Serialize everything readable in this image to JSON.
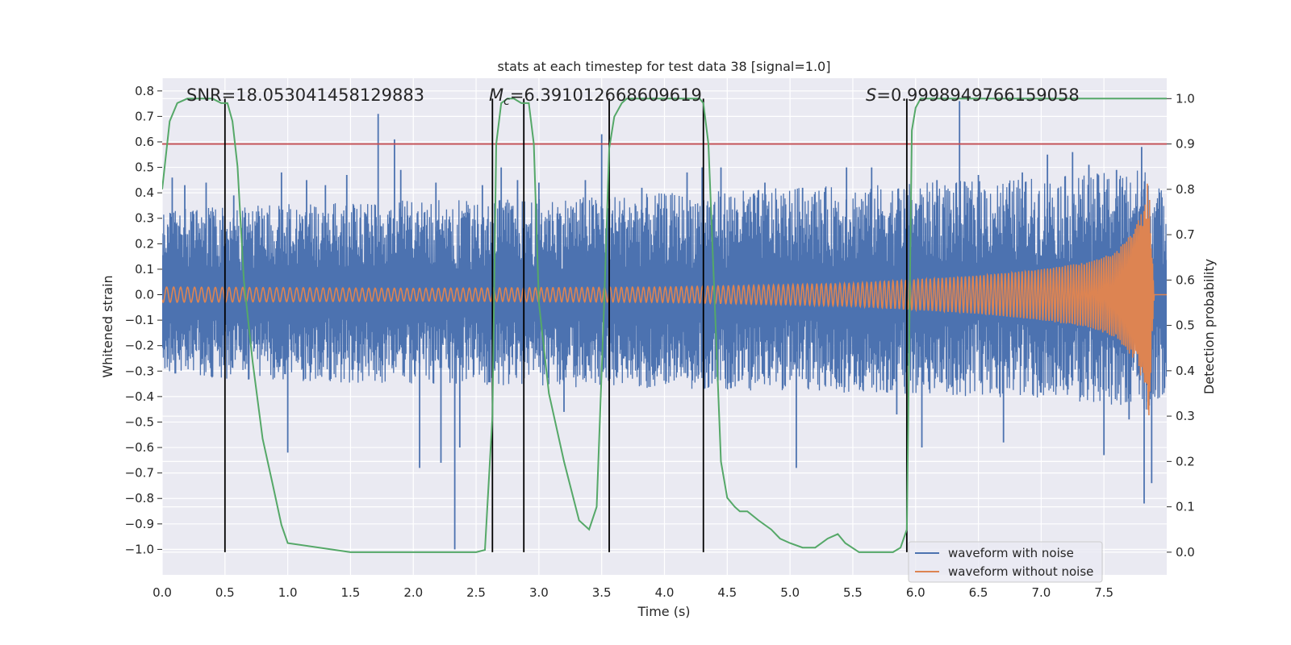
{
  "chart_data": {
    "type": "line",
    "title": "stats at each timestep for test data 38 [signal=1.0]",
    "xlabel": "Time (s)",
    "ylabel_left": "Whitened strain",
    "ylabel_right": "Detection probability",
    "xlim": [
      0.0,
      8.0
    ],
    "ylim_left": [
      -1.1,
      0.85
    ],
    "ylim_right": [
      -0.05,
      1.045
    ],
    "x_ticks": [
      "0.0",
      "0.5",
      "1.0",
      "1.5",
      "2.0",
      "2.5",
      "3.0",
      "3.5",
      "4.0",
      "4.5",
      "5.0",
      "5.5",
      "6.0",
      "6.5",
      "7.0",
      "7.5"
    ],
    "y_left_ticks": [
      "0.8",
      "0.7",
      "0.6",
      "0.5",
      "0.4",
      "0.3",
      "0.2",
      "0.1",
      "0.0",
      "−0.1",
      "−0.2",
      "−0.3",
      "−0.4",
      "−0.5",
      "−0.6",
      "−0.7",
      "−0.8",
      "−0.9",
      "−1.0"
    ],
    "y_right_ticks": [
      "1.0",
      "0.9",
      "0.8",
      "0.7",
      "0.6",
      "0.5",
      "0.4",
      "0.3",
      "0.2",
      "0.1",
      "0.0"
    ],
    "grid": true,
    "legend_position": "lower-right",
    "annotations": {
      "snr": "SNR=18.053041458129883",
      "mc": "=6.391012668609619",
      "mc_symbol": "M",
      "mc_sub": "c",
      "s_label": "=0.9998949766159058",
      "s_symbol": "S"
    },
    "threshold": {
      "axis": "right",
      "value": 0.9,
      "color": "#c44e52"
    },
    "vertical_lines_x": [
      0.5,
      2.63,
      2.88,
      3.56,
      4.31,
      5.93
    ],
    "series": [
      {
        "name": "waveform with noise",
        "color": "#4c72b0",
        "axis": "left",
        "envelope_upper": [
          [
            0.0,
            0.33
          ],
          [
            0.5,
            0.35
          ],
          [
            1.0,
            0.36
          ],
          [
            2.0,
            0.37
          ],
          [
            3.0,
            0.38
          ],
          [
            4.0,
            0.4
          ],
          [
            5.0,
            0.42
          ],
          [
            6.0,
            0.44
          ],
          [
            7.0,
            0.46
          ],
          [
            7.5,
            0.48
          ],
          [
            7.85,
            0.5
          ],
          [
            7.95,
            0.42
          ],
          [
            8.0,
            0.4
          ]
        ],
        "envelope_lower": [
          [
            0.0,
            -0.31
          ],
          [
            0.5,
            -0.33
          ],
          [
            1.0,
            -0.34
          ],
          [
            2.0,
            -0.35
          ],
          [
            3.0,
            -0.36
          ],
          [
            4.0,
            -0.37
          ],
          [
            5.0,
            -0.38
          ],
          [
            6.0,
            -0.39
          ],
          [
            7.0,
            -0.41
          ],
          [
            7.5,
            -0.43
          ],
          [
            7.85,
            -0.47
          ],
          [
            7.95,
            -0.4
          ],
          [
            8.0,
            -0.38
          ]
        ],
        "peaks": [
          [
            0.08,
            0.46
          ],
          [
            0.18,
            0.43
          ],
          [
            0.35,
            0.44
          ],
          [
            0.57,
            0.39
          ],
          [
            0.95,
            0.48
          ],
          [
            1.0,
            -0.62
          ],
          [
            1.15,
            0.45
          ],
          [
            1.3,
            0.43
          ],
          [
            1.47,
            0.47
          ],
          [
            1.72,
            0.71
          ],
          [
            1.85,
            0.61
          ],
          [
            1.9,
            0.49
          ],
          [
            2.05,
            -0.68
          ],
          [
            2.18,
            0.44
          ],
          [
            2.22,
            -0.66
          ],
          [
            2.33,
            -1.0
          ],
          [
            2.37,
            -0.6
          ],
          [
            2.55,
            0.43
          ],
          [
            2.7,
            0.5
          ],
          [
            2.83,
            0.45
          ],
          [
            3.0,
            0.44
          ],
          [
            3.2,
            -0.46
          ],
          [
            3.37,
            0.45
          ],
          [
            3.5,
            0.63
          ],
          [
            3.82,
            0.42
          ],
          [
            4.18,
            0.48
          ],
          [
            4.3,
            0.5
          ],
          [
            4.45,
            0.5
          ],
          [
            4.8,
            0.44
          ],
          [
            5.05,
            -0.68
          ],
          [
            5.1,
            0.42
          ],
          [
            5.45,
            0.5
          ],
          [
            5.65,
            0.5
          ],
          [
            5.85,
            -0.47
          ],
          [
            6.05,
            -0.6
          ],
          [
            6.17,
            0.45
          ],
          [
            6.35,
            0.76
          ],
          [
            6.5,
            0.47
          ],
          [
            6.7,
            -0.58
          ],
          [
            6.85,
            0.48
          ],
          [
            7.05,
            0.55
          ],
          [
            7.25,
            0.56
          ],
          [
            7.38,
            0.51
          ],
          [
            7.5,
            -0.63
          ],
          [
            7.6,
            0.49
          ],
          [
            7.7,
            -0.49
          ],
          [
            7.8,
            0.58
          ],
          [
            7.82,
            -0.82
          ],
          [
            7.88,
            -0.74
          ]
        ]
      },
      {
        "name": "waveform without noise",
        "color": "#dd8452",
        "axis": "left",
        "amplitude": [
          [
            0.0,
            0.03
          ],
          [
            2.0,
            0.025
          ],
          [
            4.0,
            0.03
          ],
          [
            5.5,
            0.045
          ],
          [
            6.5,
            0.075
          ],
          [
            7.0,
            0.1
          ],
          [
            7.4,
            0.13
          ],
          [
            7.6,
            0.17
          ],
          [
            7.75,
            0.26
          ],
          [
            7.82,
            0.36
          ],
          [
            7.86,
            0.5
          ],
          [
            7.88,
            0.2
          ],
          [
            7.9,
            0.0
          ],
          [
            8.0,
            0.0
          ]
        ]
      },
      {
        "name": "detection probability",
        "color": "#55a868",
        "axis": "right",
        "x": [
          0.0,
          0.06,
          0.12,
          0.2,
          0.3,
          0.4,
          0.47,
          0.52,
          0.56,
          0.6,
          0.65,
          0.72,
          0.8,
          0.88,
          0.95,
          1.0,
          1.5,
          2.0,
          2.4,
          2.5,
          2.57,
          2.63,
          2.66,
          2.7,
          2.75,
          2.8,
          2.86,
          2.92,
          2.96,
          3.0,
          3.08,
          3.2,
          3.32,
          3.4,
          3.46,
          3.52,
          3.56,
          3.6,
          3.66,
          3.7,
          3.8,
          4.0,
          4.2,
          4.28,
          4.31,
          4.35,
          4.4,
          4.45,
          4.5,
          4.56,
          4.6,
          4.66,
          4.75,
          4.85,
          4.92,
          5.0,
          5.1,
          5.2,
          5.3,
          5.38,
          5.44,
          5.55,
          5.7,
          5.82,
          5.88,
          5.93,
          5.97,
          6.0,
          6.04,
          6.1,
          6.5,
          7.0,
          7.5,
          8.0
        ],
        "y": [
          0.8,
          0.95,
          0.99,
          1.0,
          1.0,
          1.0,
          0.99,
          0.99,
          0.95,
          0.85,
          0.6,
          0.42,
          0.25,
          0.15,
          0.06,
          0.02,
          0.0,
          0.0,
          0.0,
          0.0,
          0.005,
          0.3,
          0.9,
          0.99,
          1.0,
          1.0,
          0.99,
          0.99,
          0.9,
          0.55,
          0.35,
          0.2,
          0.07,
          0.05,
          0.1,
          0.55,
          0.89,
          0.96,
          0.99,
          1.0,
          1.0,
          1.0,
          1.0,
          1.0,
          0.99,
          0.9,
          0.55,
          0.2,
          0.12,
          0.1,
          0.09,
          0.09,
          0.07,
          0.05,
          0.03,
          0.02,
          0.01,
          0.01,
          0.03,
          0.04,
          0.02,
          0.0,
          0.0,
          0.0,
          0.01,
          0.05,
          0.93,
          0.98,
          1.0,
          1.0,
          1.0,
          1.0,
          1.0,
          1.0
        ]
      }
    ]
  }
}
